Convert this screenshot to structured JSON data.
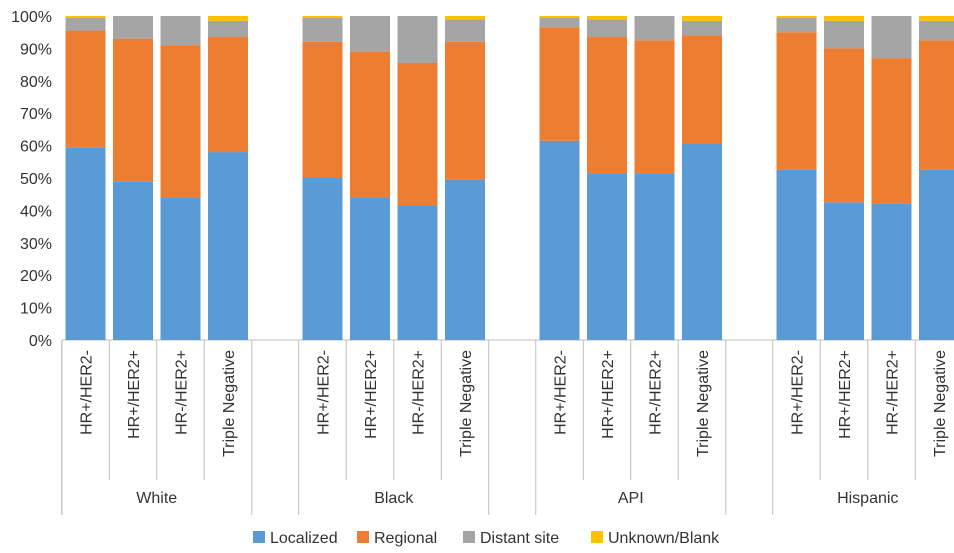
{
  "chart_data": {
    "type": "bar",
    "stacked": true,
    "percent_stacked": true,
    "groups": [
      "White",
      "Black",
      "API",
      "Hispanic"
    ],
    "subcategories": [
      "HR+/HER2-",
      "HR+/HER2+",
      "HR-/HER2+",
      "Triple Negative"
    ],
    "y_ticks": [
      "0%",
      "10%",
      "20%",
      "30%",
      "40%",
      "50%",
      "60%",
      "70%",
      "80%",
      "90%",
      "100%"
    ],
    "ylim": [
      0,
      100
    ],
    "grid": false,
    "legend_position": "bottom",
    "series": [
      {
        "name": "Localized",
        "color": "#5B9BD5",
        "values": [
          59.5,
          49.0,
          44.0,
          58.0,
          50.0,
          44.0,
          41.5,
          49.5,
          61.5,
          51.5,
          51.5,
          60.5,
          52.5,
          42.5,
          42.0,
          52.5
        ]
      },
      {
        "name": "Regional",
        "color": "#ED7D31",
        "values": [
          36.0,
          44.0,
          47.0,
          35.5,
          42.0,
          45.0,
          44.0,
          42.5,
          35.0,
          42.0,
          41.0,
          33.5,
          42.5,
          47.5,
          45.0,
          40.0
        ]
      },
      {
        "name": "Distant site",
        "color": "#A5A5A5",
        "values": [
          4.0,
          7.0,
          9.0,
          5.0,
          7.5,
          11.0,
          14.5,
          7.0,
          3.0,
          5.5,
          7.5,
          4.5,
          4.5,
          8.5,
          13.0,
          6.0
        ]
      },
      {
        "name": "Unknown/Blank",
        "color": "#FFC000",
        "values": [
          0.5,
          0.0,
          0.0,
          1.5,
          0.5,
          0.0,
          0.0,
          1.0,
          0.5,
          1.0,
          0.0,
          1.5,
          0.5,
          1.5,
          0.0,
          1.5
        ]
      }
    ]
  }
}
